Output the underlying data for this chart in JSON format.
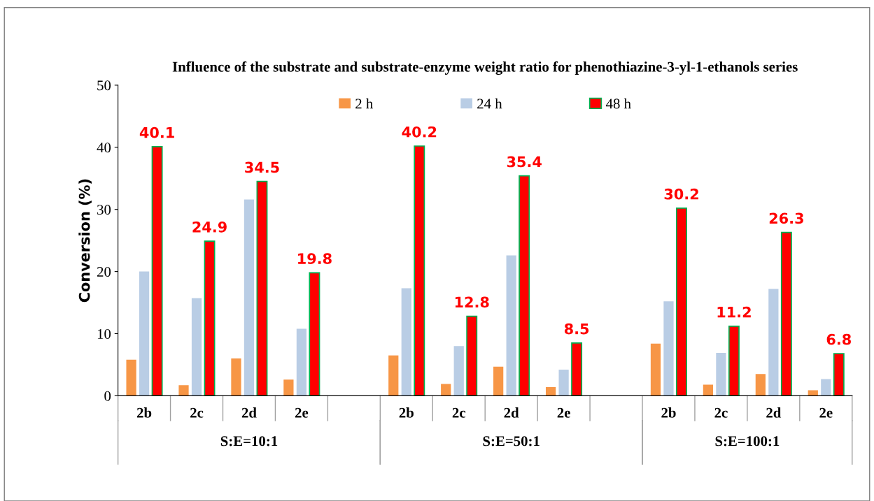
{
  "chart_data": {
    "type": "bar",
    "title": "Influence of the substrate and substrate-enzyme weight ratio for phenothiazine-3-yl-1-ethanols series",
    "ylabel": "Conversion (%)",
    "categories": [
      "2b",
      "2c",
      "2d",
      "2e",
      null,
      "2b",
      "2c",
      "2d",
      "2e",
      null,
      "2b",
      "2c",
      "2d",
      "2e"
    ],
    "series": [
      {
        "name": "2 h",
        "color": "#f79646",
        "values": [
          5.8,
          1.7,
          6.0,
          2.6,
          null,
          6.5,
          1.9,
          4.7,
          1.4,
          null,
          8.4,
          1.8,
          3.5,
          0.9
        ]
      },
      {
        "name": "24 h",
        "color": "#b9cde5",
        "values": [
          20.0,
          15.7,
          31.6,
          10.8,
          null,
          17.3,
          8.0,
          22.6,
          4.2,
          null,
          15.2,
          6.9,
          17.2,
          2.7
        ]
      },
      {
        "name": "48 h",
        "color": "#ff0000",
        "values": [
          40.1,
          24.9,
          34.5,
          19.8,
          null,
          40.2,
          12.8,
          35.4,
          8.5,
          null,
          30.2,
          11.2,
          26.3,
          6.8
        ],
        "value_labels": [
          "40.1",
          "24.9",
          "34.5",
          "19.8",
          null,
          "40.2",
          "12.8",
          "35.4",
          "8.5",
          null,
          "30.2",
          "11.2",
          "26.3",
          "6.8"
        ]
      }
    ],
    "ylim": [
      0,
      50
    ],
    "yticks": [
      0,
      10,
      20,
      30,
      40,
      50
    ],
    "grid": false,
    "legend": "top",
    "annotations": [
      "S:E=10:1",
      "S:E=50:1",
      "S:E=100:1"
    ]
  }
}
